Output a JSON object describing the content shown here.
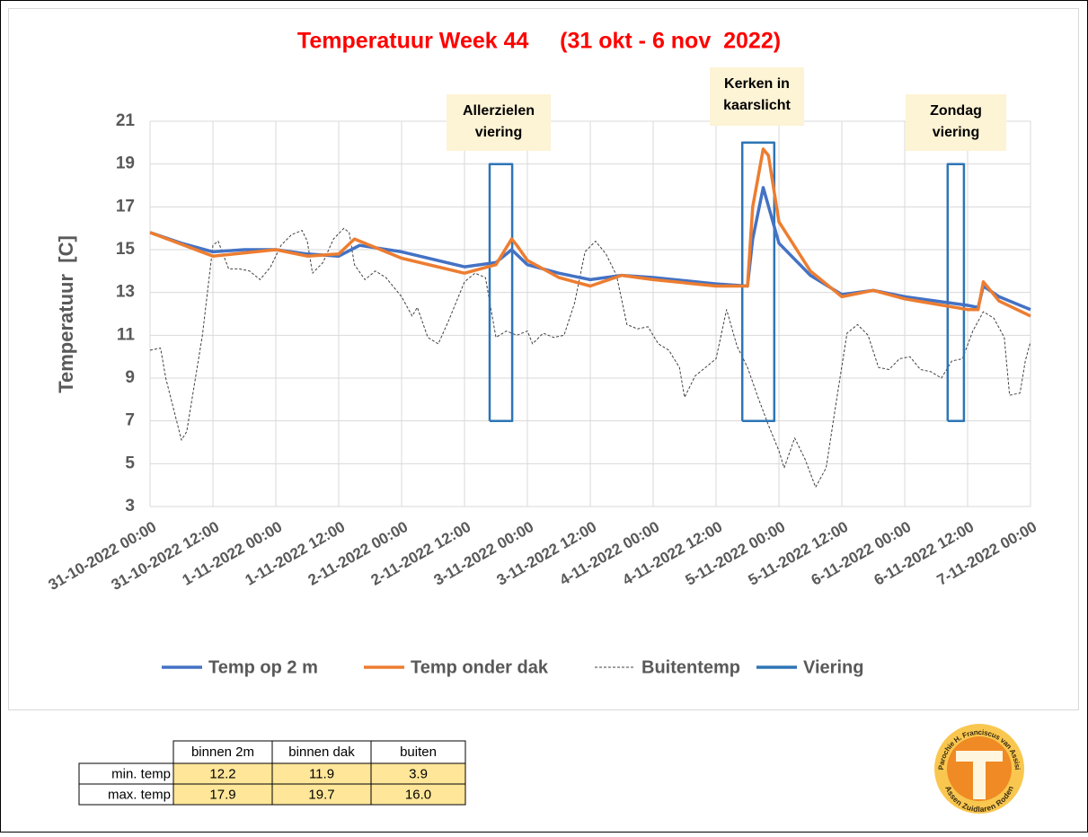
{
  "chart_data": {
    "type": "line",
    "title": "Temperatuur Week 44     (31 okt - 6 nov  2022)",
    "y_label": "Temperatuur  [C]",
    "xlim": [
      "31-10-2022 00:00",
      "7-11-2022 00:00"
    ],
    "xticks": [
      "31-10-2022 00:00",
      "31-10-2022 12:00",
      "1-11-2022 00:00",
      "1-11-2022 12:00",
      "2-11-2022 00:00",
      "2-11-2022 12:00",
      "3-11-2022 00:00",
      "3-11-2022 12:00",
      "4-11-2022 00:00",
      "4-11-2022 12:00",
      "5-11-2022 00:00",
      "5-11-2022 12:00",
      "6-11-2022 00:00",
      "6-11-2022 12:00",
      "7-11-2022 00:00"
    ],
    "ylim": [
      3,
      21
    ],
    "yticks": [
      3,
      5,
      7,
      9,
      11,
      13,
      15,
      17,
      19,
      21
    ],
    "grid": true,
    "legend": "bottom",
    "series": [
      {
        "name": "Temp op 2 m",
        "color": "#4472c4",
        "x": [
          "31-10-2022 00:00",
          "31-10-2022 06:00",
          "31-10-2022 12:00",
          "31-10-2022 18:00",
          "1-11-2022 00:00",
          "1-11-2022 06:00",
          "1-11-2022 12:00",
          "1-11-2022 16:00",
          "2-11-2022 00:00",
          "2-11-2022 12:00",
          "2-11-2022 18:00",
          "2-11-2022 21:00",
          "3-11-2022 00:00",
          "3-11-2022 06:00",
          "3-11-2022 12:00",
          "3-11-2022 18:00",
          "4-11-2022 00:00",
          "4-11-2022 12:00",
          "4-11-2022 18:00",
          "4-11-2022 19:00",
          "4-11-2022 21:00",
          "5-11-2022 00:00",
          "5-11-2022 06:00",
          "5-11-2022 12:00",
          "5-11-2022 18:00",
          "6-11-2022 00:00",
          "6-11-2022 12:00",
          "6-11-2022 14:00",
          "6-11-2022 15:00",
          "6-11-2022 18:00",
          "7-11-2022 00:00"
        ],
        "values": [
          15.8,
          15.3,
          14.9,
          15.0,
          15.0,
          14.8,
          14.7,
          15.2,
          14.9,
          14.2,
          14.4,
          15.0,
          14.3,
          13.9,
          13.6,
          13.8,
          13.7,
          13.4,
          13.3,
          15.5,
          17.9,
          15.3,
          13.8,
          12.9,
          13.1,
          12.8,
          12.4,
          12.3,
          13.3,
          12.8,
          12.2
        ]
      },
      {
        "name": "Temp onder dak",
        "color": "#ed7d31",
        "x": [
          "31-10-2022 00:00",
          "31-10-2022 12:00",
          "1-11-2022 00:00",
          "1-11-2022 06:00",
          "1-11-2022 12:00",
          "1-11-2022 15:00",
          "1-11-2022 18:00",
          "2-11-2022 00:00",
          "2-11-2022 12:00",
          "2-11-2022 18:00",
          "2-11-2022 21:00",
          "2-11-2022 22:00",
          "3-11-2022 00:00",
          "3-11-2022 06:00",
          "3-11-2022 12:00",
          "3-11-2022 18:00",
          "4-11-2022 00:00",
          "4-11-2022 12:00",
          "4-11-2022 18:00",
          "4-11-2022 19:00",
          "4-11-2022 21:00",
          "4-11-2022 22:00",
          "5-11-2022 00:00",
          "5-11-2022 06:00",
          "5-11-2022 12:00",
          "5-11-2022 18:00",
          "6-11-2022 00:00",
          "6-11-2022 12:00",
          "6-11-2022 14:00",
          "6-11-2022 15:00",
          "6-11-2022 18:00",
          "7-11-2022 00:00"
        ],
        "values": [
          15.8,
          14.7,
          15.0,
          14.7,
          14.8,
          15.5,
          15.2,
          14.6,
          13.9,
          14.3,
          15.5,
          15.2,
          14.5,
          13.7,
          13.3,
          13.8,
          13.6,
          13.3,
          13.3,
          17.0,
          19.7,
          19.4,
          16.3,
          14.0,
          12.8,
          13.1,
          12.7,
          12.2,
          12.2,
          13.5,
          12.6,
          11.9
        ]
      },
      {
        "name": "Buitentemp",
        "color": "#404040",
        "dash": true,
        "x": [
          "31-10-2022 00:00",
          "31-10-2022 02:00",
          "31-10-2022 03:00",
          "31-10-2022 06:00",
          "31-10-2022 07:00",
          "31-10-2022 10:00",
          "31-10-2022 12:00",
          "31-10-2022 13:00",
          "31-10-2022 15:00",
          "31-10-2022 17:00",
          "31-10-2022 19:00",
          "31-10-2022 21:00",
          "31-10-2022 23:00",
          "1-11-2022 01:00",
          "1-11-2022 03:00",
          "1-11-2022 05:00",
          "1-11-2022 06:00",
          "1-11-2022 07:00",
          "1-11-2022 09:00",
          "1-11-2022 11:00",
          "1-11-2022 13:00",
          "1-11-2022 14:00",
          "1-11-2022 15:00",
          "1-11-2022 17:00",
          "1-11-2022 19:00",
          "1-11-2022 21:00",
          "2-11-2022 00:00",
          "2-11-2022 02:00",
          "2-11-2022 03:00",
          "2-11-2022 05:00",
          "2-11-2022 07:00",
          "2-11-2022 09:00",
          "2-11-2022 12:00",
          "2-11-2022 14:00",
          "2-11-2022 16:00",
          "2-11-2022 18:00",
          "2-11-2022 20:00",
          "2-11-2022 22:00",
          "3-11-2022 00:00",
          "3-11-2022 01:00",
          "3-11-2022 03:00",
          "3-11-2022 05:00",
          "3-11-2022 07:00",
          "3-11-2022 09:00",
          "3-11-2022 11:00",
          "3-11-2022 13:00",
          "3-11-2022 15:00",
          "3-11-2022 17:00",
          "3-11-2022 19:00",
          "3-11-2022 21:00",
          "3-11-2022 23:00",
          "4-11-2022 01:00",
          "4-11-2022 03:00",
          "4-11-2022 05:00",
          "4-11-2022 06:00",
          "4-11-2022 08:00",
          "4-11-2022 10:00",
          "4-11-2022 12:00",
          "4-11-2022 14:00",
          "4-11-2022 16:00",
          "4-11-2022 18:00",
          "4-11-2022 20:00",
          "4-11-2022 22:00",
          "5-11-2022 00:00",
          "5-11-2022 01:00",
          "5-11-2022 03:00",
          "5-11-2022 05:00",
          "5-11-2022 07:00",
          "5-11-2022 09:00",
          "5-11-2022 11:00",
          "5-11-2022 13:00",
          "5-11-2022 15:00",
          "5-11-2022 17:00",
          "5-11-2022 19:00",
          "5-11-2022 21:00",
          "5-11-2022 23:00",
          "6-11-2022 01:00",
          "6-11-2022 03:00",
          "6-11-2022 05:00",
          "6-11-2022 07:00",
          "6-11-2022 09:00",
          "6-11-2022 11:00",
          "6-11-2022 13:00",
          "6-11-2022 15:00",
          "6-11-2022 17:00",
          "6-11-2022 19:00",
          "6-11-2022 20:00",
          "6-11-2022 22:00",
          "6-11-2022 23:00",
          "7-11-2022 00:00"
        ],
        "values": [
          10.3,
          10.4,
          9.0,
          6.1,
          6.5,
          11.0,
          15.2,
          15.4,
          14.1,
          14.1,
          14.0,
          13.6,
          14.2,
          15.2,
          15.7,
          15.9,
          15.4,
          13.9,
          14.4,
          15.5,
          16.0,
          15.8,
          14.3,
          13.6,
          14.0,
          13.7,
          12.8,
          11.9,
          12.3,
          10.9,
          10.6,
          11.7,
          13.5,
          13.9,
          13.7,
          10.9,
          11.2,
          11.0,
          11.2,
          10.6,
          11.1,
          10.9,
          11.0,
          12.5,
          14.9,
          15.4,
          14.8,
          13.8,
          11.5,
          11.3,
          11.4,
          10.6,
          10.3,
          9.5,
          8.1,
          9.1,
          9.5,
          9.9,
          12.2,
          10.5,
          9.5,
          8.1,
          6.8,
          5.6,
          4.8,
          6.2,
          5.2,
          3.9,
          4.8,
          8.0,
          11.1,
          11.5,
          11.0,
          9.5,
          9.4,
          9.9,
          10.0,
          9.4,
          9.3,
          9.0,
          9.8,
          9.9,
          11.2,
          12.1,
          11.8,
          10.9,
          8.2,
          8.3,
          9.8,
          10.7
        ]
      },
      {
        "name": "Viering",
        "color": "#2e75b6",
        "x": [
          "2-11-2022 16:48",
          "2-11-2022 16:48",
          "2-11-2022 21:06",
          "2-11-2022 21:06",
          "2-11-2022 16:48",
          null,
          "4-11-2022 17:00",
          "4-11-2022 17:00",
          "4-11-2022 23:06",
          "4-11-2022 23:06",
          "4-11-2022 17:00",
          null,
          "6-11-2022 08:12",
          "6-11-2022 08:12",
          "6-11-2022 11:18",
          "6-11-2022 11:18",
          "6-11-2022 08:12"
        ],
        "values": [
          7,
          19,
          19,
          7,
          7,
          null,
          7,
          20,
          20,
          7,
          7,
          null,
          7,
          19,
          19,
          7,
          7
        ]
      }
    ],
    "annotations": [
      {
        "lines": [
          "Allerzielen",
          "viering"
        ]
      },
      {
        "lines": [
          "Kerken in",
          "kaarslicht"
        ]
      },
      {
        "lines": [
          "Zondag",
          "viering"
        ]
      }
    ]
  },
  "table": {
    "header": [
      "binnen 2m",
      "binnen dak",
      "buiten"
    ],
    "rows": [
      [
        "min. temp",
        "12.2",
        "11.9",
        "3.9"
      ],
      [
        "max. temp",
        "17.9",
        "19.7",
        "16.0"
      ]
    ]
  },
  "logo": {
    "top": "Parochie H. Franciscus van Assisi",
    "bottom": "Assen Zuidlaren Roden"
  }
}
